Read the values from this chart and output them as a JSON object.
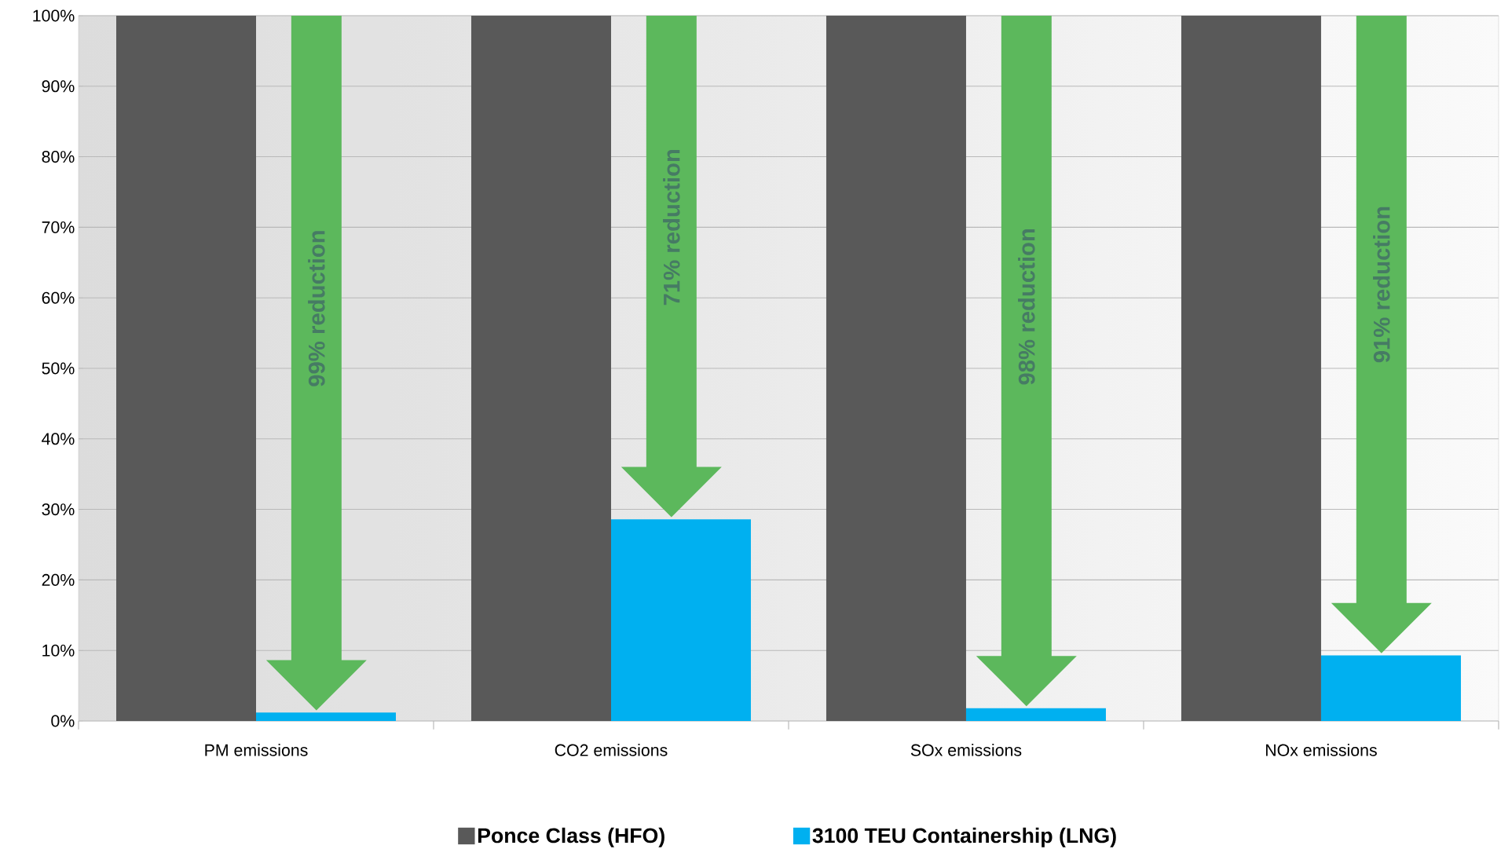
{
  "chart_data": {
    "type": "bar",
    "categories": [
      "PM emissions",
      "CO2 emissions",
      "SOx emissions",
      "NOx emissions"
    ],
    "series": [
      {
        "name": "Ponce Class (HFO)",
        "color": "#595959",
        "values": [
          100,
          100,
          100,
          100
        ]
      },
      {
        "name": "3100 TEU Containership (LNG)",
        "color": "#00b0f0",
        "values": [
          1.2,
          28.6,
          1.8,
          9.3
        ]
      }
    ],
    "ylim": [
      0,
      100
    ],
    "yticks": [
      {
        "value": 0,
        "label": "0%"
      },
      {
        "value": 10,
        "label": "10%"
      },
      {
        "value": 20,
        "label": "20%"
      },
      {
        "value": 30,
        "label": "30%"
      },
      {
        "value": 40,
        "label": "40%"
      },
      {
        "value": 50,
        "label": "50%"
      },
      {
        "value": 60,
        "label": "60%"
      },
      {
        "value": 70,
        "label": "70%"
      },
      {
        "value": 80,
        "label": "80%"
      },
      {
        "value": 90,
        "label": "90%"
      },
      {
        "value": 100,
        "label": "100%"
      }
    ],
    "grid": "y",
    "legend": "bottom",
    "annotations": [
      "99% reduction",
      "71% reduction",
      "98% reduction",
      "91% reduction"
    ]
  }
}
